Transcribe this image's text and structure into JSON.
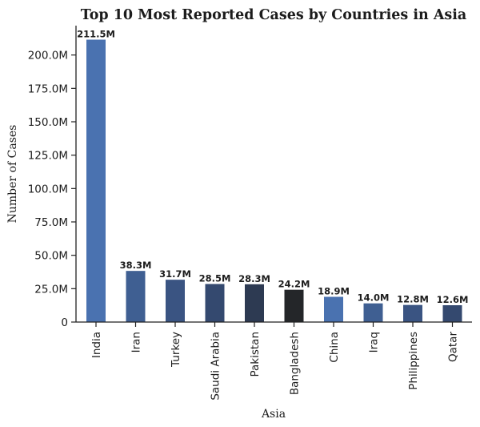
{
  "chart_data": {
    "type": "bar",
    "title": "Top 10 Most Reported Cases by Countries in Asia",
    "xlabel": "Asia",
    "ylabel": "Number of Cases",
    "categories": [
      "India",
      "Iran",
      "Turkey",
      "Saudi Arabia",
      "Pakistan",
      "Bangladesh",
      "China",
      "Iraq",
      "Philippines",
      "Qatar"
    ],
    "values": [
      211.5,
      38.3,
      31.7,
      28.5,
      28.3,
      24.2,
      18.9,
      14.0,
      12.8,
      12.6
    ],
    "value_unit": "M",
    "data_labels": [
      "211.5M",
      "38.3M",
      "31.7M",
      "28.5M",
      "28.3M",
      "24.2M",
      "18.9M",
      "14.0M",
      "12.8M",
      "12.6M"
    ],
    "bar_colors": [
      "#4a72b0",
      "#3f5f92",
      "#3a5482",
      "#34496f",
      "#2d3a52",
      "#242629",
      "#4a72b0",
      "#3f5f92",
      "#3a5482",
      "#34496f"
    ],
    "y_ticks": [
      0,
      25,
      50,
      75,
      100,
      125,
      150,
      175,
      200
    ],
    "y_tick_labels": [
      "0",
      "25.0M",
      "50.0M",
      "75.0M",
      "100.0M",
      "125.0M",
      "150.0M",
      "175.0M",
      "200.0M"
    ],
    "ylim": [
      0,
      222
    ],
    "grid": false,
    "legend": "none"
  }
}
